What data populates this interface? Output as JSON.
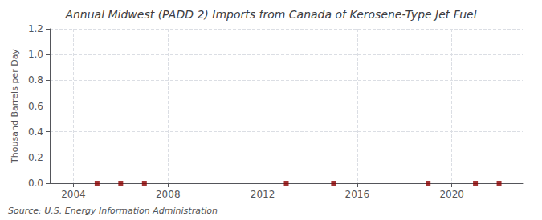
{
  "chart_data": {
    "type": "scatter",
    "title": "Annual Midwest (PADD 2) Imports from Canada of Kerosene-Type Jet Fuel",
    "ylabel": "Thousand Barrels per Day",
    "source": "Source: U.S. Energy Information Administration",
    "x": [
      2005,
      2006,
      2007,
      2013,
      2015,
      2019,
      2021,
      2022
    ],
    "values": [
      0.0,
      0.0,
      0.0,
      0.0,
      0.0,
      0.0,
      0.0,
      0.0
    ],
    "color": "#8b0000",
    "marker": "square",
    "xlim": [
      2003.0,
      2023.0
    ],
    "xticks": [
      2004,
      2008,
      2012,
      2016,
      2020
    ],
    "ylim": [
      0.0,
      1.2
    ],
    "yticks": [
      {
        "value": 0.0,
        "label": "0.0"
      },
      0.2,
      0.4,
      0.6,
      0.8,
      {
        "value": 1.0,
        "label": "1.0"
      },
      1.2
    ],
    "grid": true
  }
}
